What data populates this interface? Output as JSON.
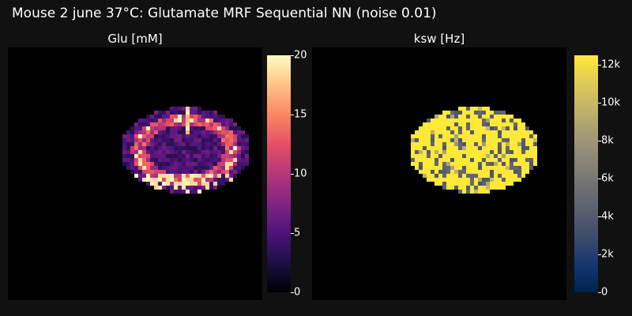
{
  "title": "Mouse 2 june 37°C: Glutamate MRF Sequential NN (noise 0.01)",
  "chart_data": [
    {
      "type": "heatmap",
      "title": "Glu [mM]",
      "colormap": "magma",
      "zlim": [
        0,
        20
      ],
      "colorbar_ticks": [
        {
          "value": 0,
          "label": "0"
        },
        {
          "value": 5,
          "label": "5"
        },
        {
          "value": 10,
          "label": "10"
        },
        {
          "value": 15,
          "label": "15"
        },
        {
          "value": 20,
          "label": "20"
        }
      ],
      "grid_size": [
        64,
        64
      ],
      "roi": "brain coronal slice (cells outside ROI are background)",
      "typical_values": {
        "interior": 3,
        "rim": 18,
        "cortex_band": 8
      }
    },
    {
      "type": "heatmap",
      "title": "ksw [Hz]",
      "colormap": "cividis",
      "zlim": [
        0,
        12500
      ],
      "colorbar_ticks": [
        {
          "value": 0,
          "label": "0"
        },
        {
          "value": 2000,
          "label": "2k"
        },
        {
          "value": 4000,
          "label": "4k"
        },
        {
          "value": 6000,
          "label": "6k"
        },
        {
          "value": 8000,
          "label": "8k"
        },
        {
          "value": 10000,
          "label": "10k"
        },
        {
          "value": 12000,
          "label": "12k"
        }
      ],
      "grid_size": [
        64,
        64
      ],
      "roi": "brain coronal slice (cells outside ROI are background)",
      "typical_values": {
        "majority": 12500,
        "minority": 3500
      }
    }
  ]
}
